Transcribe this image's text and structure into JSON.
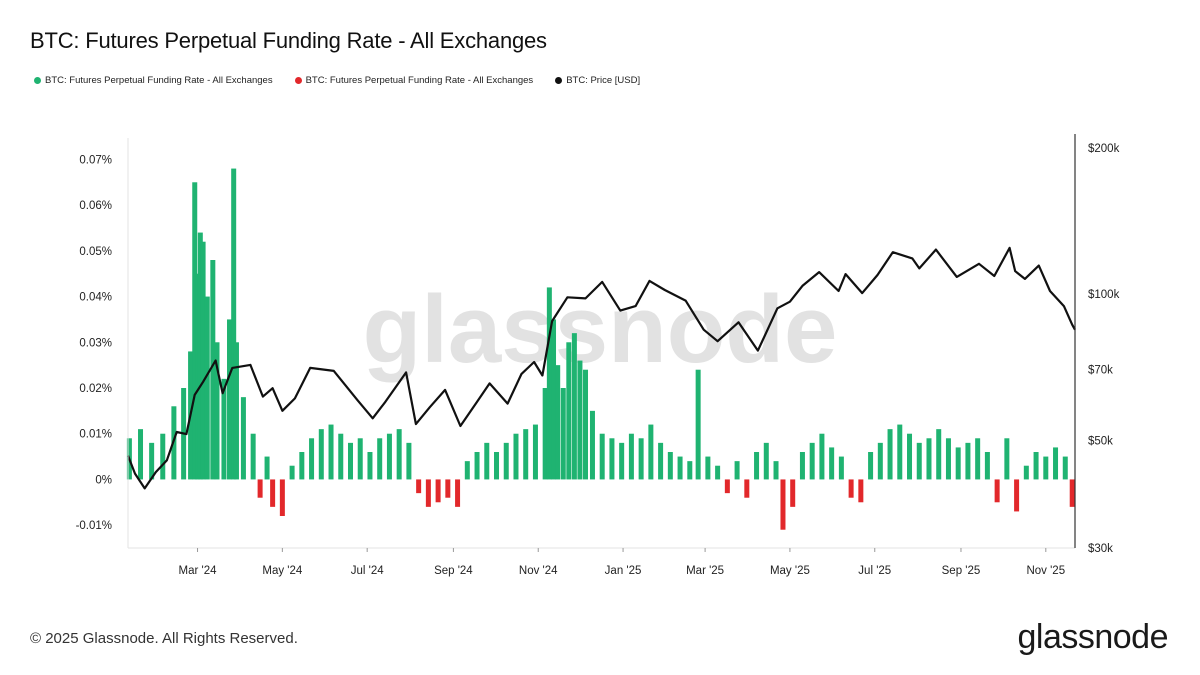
{
  "header": {
    "title": "BTC: Futures Perpetual Funding Rate - All Exchanges"
  },
  "footer": {
    "copyright": "© 2025 Glassnode. All Rights Reserved.",
    "brand": "glassnode"
  },
  "watermark": "glassnode",
  "colors": {
    "positive": "#1fb371",
    "negative": "#e2282b",
    "price": "#111111"
  },
  "chart_data": {
    "type": "bar",
    "legend": [
      {
        "label": "BTC: Futures Perpetual Funding Rate - All Exchanges",
        "color": "#1fb371"
      },
      {
        "label": "BTC: Futures Perpetual Funding Rate - All Exchanges",
        "color": "#e2282b"
      },
      {
        "label": "BTC: Price [USD]",
        "color": "#111111"
      }
    ],
    "x_range": [
      "2024-01-11",
      "2025-11-22"
    ],
    "x_ticks": [
      {
        "date": "2024-03-01",
        "label": "Mar '24"
      },
      {
        "date": "2024-05-01",
        "label": "May '24"
      },
      {
        "date": "2024-07-01",
        "label": "Jul '24"
      },
      {
        "date": "2024-09-01",
        "label": "Sep '24"
      },
      {
        "date": "2024-11-01",
        "label": "Nov '24"
      },
      {
        "date": "2025-01-01",
        "label": "Jan '25"
      },
      {
        "date": "2025-03-01",
        "label": "Mar '25"
      },
      {
        "date": "2025-05-01",
        "label": "May '25"
      },
      {
        "date": "2025-07-01",
        "label": "Jul '25"
      },
      {
        "date": "2025-09-01",
        "label": "Sep '25"
      },
      {
        "date": "2025-11-01",
        "label": "Nov '25"
      }
    ],
    "y_left": {
      "range": [
        -0.015,
        0.0725
      ],
      "ticks": [
        {
          "value": -0.01,
          "label": "-0.01%"
        },
        {
          "value": 0,
          "label": "0%"
        },
        {
          "value": 0.01,
          "label": "0.01%"
        },
        {
          "value": 0.02,
          "label": "0.02%"
        },
        {
          "value": 0.03,
          "label": "0.03%"
        },
        {
          "value": 0.04,
          "label": "0.04%"
        },
        {
          "value": 0.05,
          "label": "0.05%"
        },
        {
          "value": 0.06,
          "label": "0.06%"
        },
        {
          "value": 0.07,
          "label": "0.07%"
        }
      ]
    },
    "y_right": {
      "scale": "log",
      "range": [
        30000,
        200000
      ],
      "ticks": [
        {
          "value": 30000,
          "label": "$30k"
        },
        {
          "value": 50000,
          "label": "$50k"
        },
        {
          "value": 70000,
          "label": "$70k"
        },
        {
          "value": 100000,
          "label": "$100k"
        },
        {
          "value": 200000,
          "label": "$200k"
        }
      ]
    },
    "funding_rate_series": {
      "name": "BTC: Futures Perpetual Funding Rate - All Exchanges",
      "unit": "%",
      "points": [
        [
          "2024-01-12",
          0.009
        ],
        [
          "2024-01-20",
          0.011
        ],
        [
          "2024-01-28",
          0.008
        ],
        [
          "2024-02-05",
          0.01
        ],
        [
          "2024-02-13",
          0.016
        ],
        [
          "2024-02-20",
          0.02
        ],
        [
          "2024-02-25",
          0.028
        ],
        [
          "2024-02-28",
          0.065
        ],
        [
          "2024-03-01",
          0.045
        ],
        [
          "2024-03-03",
          0.054
        ],
        [
          "2024-03-05",
          0.052
        ],
        [
          "2024-03-08",
          0.04
        ],
        [
          "2024-03-12",
          0.048
        ],
        [
          "2024-03-15",
          0.03
        ],
        [
          "2024-03-20",
          0.022
        ],
        [
          "2024-03-24",
          0.035
        ],
        [
          "2024-03-27",
          0.068
        ],
        [
          "2024-03-29",
          0.03
        ],
        [
          "2024-04-03",
          0.018
        ],
        [
          "2024-04-10",
          0.01
        ],
        [
          "2024-04-15",
          -0.004
        ],
        [
          "2024-04-20",
          0.005
        ],
        [
          "2024-04-24",
          -0.006
        ],
        [
          "2024-05-01",
          -0.008
        ],
        [
          "2024-05-08",
          0.003
        ],
        [
          "2024-05-15",
          0.006
        ],
        [
          "2024-05-22",
          0.009
        ],
        [
          "2024-05-29",
          0.011
        ],
        [
          "2024-06-05",
          0.012
        ],
        [
          "2024-06-12",
          0.01
        ],
        [
          "2024-06-19",
          0.008
        ],
        [
          "2024-06-26",
          0.009
        ],
        [
          "2024-07-03",
          0.006
        ],
        [
          "2024-07-10",
          0.009
        ],
        [
          "2024-07-17",
          0.01
        ],
        [
          "2024-07-24",
          0.011
        ],
        [
          "2024-07-31",
          0.008
        ],
        [
          "2024-08-07",
          -0.003
        ],
        [
          "2024-08-14",
          -0.006
        ],
        [
          "2024-08-21",
          -0.005
        ],
        [
          "2024-08-28",
          -0.004
        ],
        [
          "2024-09-04",
          -0.006
        ],
        [
          "2024-09-11",
          0.004
        ],
        [
          "2024-09-18",
          0.006
        ],
        [
          "2024-09-25",
          0.008
        ],
        [
          "2024-10-02",
          0.006
        ],
        [
          "2024-10-09",
          0.008
        ],
        [
          "2024-10-16",
          0.01
        ],
        [
          "2024-10-23",
          0.011
        ],
        [
          "2024-10-30",
          0.012
        ],
        [
          "2024-11-06",
          0.02
        ],
        [
          "2024-11-09",
          0.042
        ],
        [
          "2024-11-12",
          0.035
        ],
        [
          "2024-11-15",
          0.025
        ],
        [
          "2024-11-19",
          0.02
        ],
        [
          "2024-11-23",
          0.03
        ],
        [
          "2024-11-27",
          0.032
        ],
        [
          "2024-12-01",
          0.026
        ],
        [
          "2024-12-05",
          0.024
        ],
        [
          "2024-12-10",
          0.015
        ],
        [
          "2024-12-17",
          0.01
        ],
        [
          "2024-12-24",
          0.009
        ],
        [
          "2024-12-31",
          0.008
        ],
        [
          "2025-01-07",
          0.01
        ],
        [
          "2025-01-14",
          0.009
        ],
        [
          "2025-01-21",
          0.012
        ],
        [
          "2025-01-28",
          0.008
        ],
        [
          "2025-02-04",
          0.006
        ],
        [
          "2025-02-11",
          0.005
        ],
        [
          "2025-02-18",
          0.004
        ],
        [
          "2025-02-24",
          0.024
        ],
        [
          "2025-03-03",
          0.005
        ],
        [
          "2025-03-10",
          0.003
        ],
        [
          "2025-03-17",
          -0.003
        ],
        [
          "2025-03-24",
          0.004
        ],
        [
          "2025-03-31",
          -0.004
        ],
        [
          "2025-04-07",
          0.006
        ],
        [
          "2025-04-14",
          0.008
        ],
        [
          "2025-04-21",
          0.004
        ],
        [
          "2025-04-26",
          -0.011
        ],
        [
          "2025-05-03",
          -0.006
        ],
        [
          "2025-05-10",
          0.006
        ],
        [
          "2025-05-17",
          0.008
        ],
        [
          "2025-05-24",
          0.01
        ],
        [
          "2025-05-31",
          0.007
        ],
        [
          "2025-06-07",
          0.005
        ],
        [
          "2025-06-14",
          -0.004
        ],
        [
          "2025-06-21",
          -0.005
        ],
        [
          "2025-06-28",
          0.006
        ],
        [
          "2025-07-05",
          0.008
        ],
        [
          "2025-07-12",
          0.011
        ],
        [
          "2025-07-19",
          0.012
        ],
        [
          "2025-07-26",
          0.01
        ],
        [
          "2025-08-02",
          0.008
        ],
        [
          "2025-08-09",
          0.009
        ],
        [
          "2025-08-16",
          0.011
        ],
        [
          "2025-08-23",
          0.009
        ],
        [
          "2025-08-30",
          0.007
        ],
        [
          "2025-09-06",
          0.008
        ],
        [
          "2025-09-13",
          0.009
        ],
        [
          "2025-09-20",
          0.006
        ],
        [
          "2025-09-27",
          -0.005
        ],
        [
          "2025-10-04",
          0.009
        ],
        [
          "2025-10-11",
          -0.007
        ],
        [
          "2025-10-18",
          0.003
        ],
        [
          "2025-10-25",
          0.006
        ],
        [
          "2025-11-01",
          0.005
        ],
        [
          "2025-11-08",
          0.007
        ],
        [
          "2025-11-15",
          0.005
        ],
        [
          "2025-11-20",
          -0.006
        ]
      ]
    },
    "price_series": {
      "name": "BTC: Price [USD]",
      "unit": "USD",
      "points": [
        [
          "2024-01-11",
          46500
        ],
        [
          "2024-01-16",
          42700
        ],
        [
          "2024-01-23",
          39800
        ],
        [
          "2024-01-31",
          43000
        ],
        [
          "2024-02-08",
          45500
        ],
        [
          "2024-02-15",
          52000
        ],
        [
          "2024-02-22",
          51500
        ],
        [
          "2024-02-28",
          62000
        ],
        [
          "2024-03-05",
          66000
        ],
        [
          "2024-03-14",
          73000
        ],
        [
          "2024-03-19",
          62500
        ],
        [
          "2024-03-26",
          70500
        ],
        [
          "2024-04-08",
          71500
        ],
        [
          "2024-04-17",
          61500
        ],
        [
          "2024-04-24",
          64000
        ],
        [
          "2024-05-01",
          57500
        ],
        [
          "2024-05-10",
          61000
        ],
        [
          "2024-05-21",
          70500
        ],
        [
          "2024-06-07",
          69500
        ],
        [
          "2024-06-24",
          60500
        ],
        [
          "2024-07-05",
          55500
        ],
        [
          "2024-07-14",
          60000
        ],
        [
          "2024-07-29",
          69000
        ],
        [
          "2024-08-05",
          54000
        ],
        [
          "2024-08-15",
          58500
        ],
        [
          "2024-08-26",
          63500
        ],
        [
          "2024-09-06",
          53500
        ],
        [
          "2024-09-18",
          60000
        ],
        [
          "2024-09-27",
          65500
        ],
        [
          "2024-10-10",
          59500
        ],
        [
          "2024-10-20",
          68500
        ],
        [
          "2024-10-29",
          72500
        ],
        [
          "2024-11-04",
          68000
        ],
        [
          "2024-11-11",
          88000
        ],
        [
          "2024-11-22",
          98500
        ],
        [
          "2024-12-05",
          98000
        ],
        [
          "2024-12-17",
          106000
        ],
        [
          "2024-12-30",
          92500
        ],
        [
          "2025-01-10",
          94500
        ],
        [
          "2025-01-20",
          106500
        ],
        [
          "2025-01-31",
          102000
        ],
        [
          "2025-02-15",
          97000
        ],
        [
          "2025-02-28",
          84500
        ],
        [
          "2025-03-10",
          80000
        ],
        [
          "2025-03-25",
          87500
        ],
        [
          "2025-04-08",
          76500
        ],
        [
          "2025-04-22",
          93500
        ],
        [
          "2025-05-01",
          96500
        ],
        [
          "2025-05-10",
          104000
        ],
        [
          "2025-05-22",
          111000
        ],
        [
          "2025-06-05",
          101500
        ],
        [
          "2025-06-10",
          110000
        ],
        [
          "2025-06-22",
          100500
        ],
        [
          "2025-07-03",
          109500
        ],
        [
          "2025-07-14",
          122000
        ],
        [
          "2025-07-28",
          118500
        ],
        [
          "2025-08-02",
          113000
        ],
        [
          "2025-08-14",
          123500
        ],
        [
          "2025-08-29",
          108500
        ],
        [
          "2025-09-14",
          115500
        ],
        [
          "2025-09-25",
          109000
        ],
        [
          "2025-10-06",
          124500
        ],
        [
          "2025-10-10",
          111500
        ],
        [
          "2025-10-17",
          107500
        ],
        [
          "2025-10-27",
          114500
        ],
        [
          "2025-11-04",
          101500
        ],
        [
          "2025-11-14",
          94500
        ],
        [
          "2025-11-20",
          86500
        ],
        [
          "2025-11-22",
          84500
        ]
      ]
    }
  }
}
